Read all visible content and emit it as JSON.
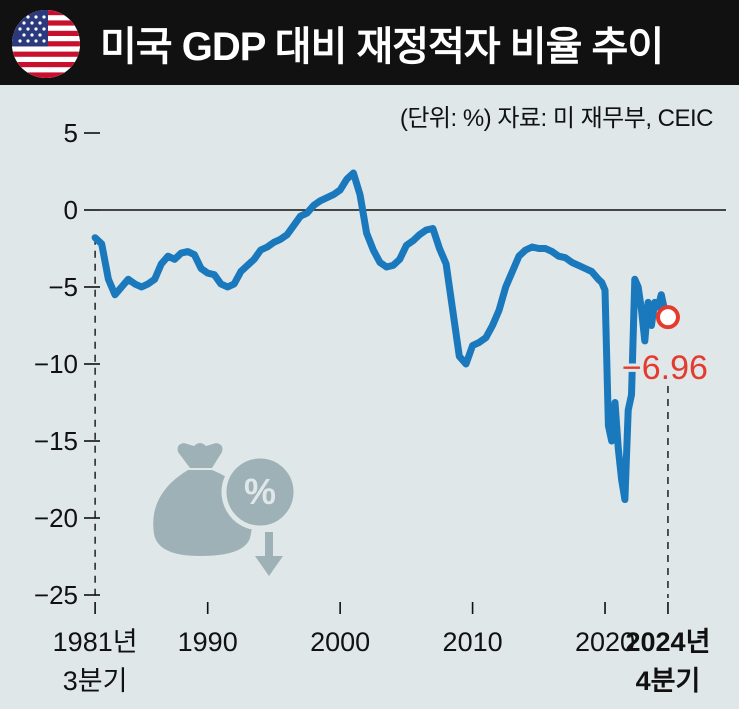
{
  "header": {
    "title": "미국 GDP 대비 재정적자 비율 추이",
    "flag_icon": "us-flag-icon"
  },
  "source_note": "(단위: %) 자료: 미 재무부, CEIC",
  "annotation": {
    "last_value_label": "−6.96"
  },
  "colors": {
    "line": "#1a78bd",
    "highlight": "#e53a2e",
    "background": "#dfe7e8",
    "header": "#111111",
    "icon": "#9eb1b6"
  },
  "chart_data": {
    "type": "line",
    "title": "미국 GDP 대비 재정적자 비율 추이",
    "unit": "%",
    "xlabel": "",
    "ylabel": "",
    "ylim": [
      -25,
      5
    ],
    "xlim": [
      1979,
      2028
    ],
    "yticks": [
      "5",
      "0",
      "−5",
      "−10",
      "−15",
      "−20",
      "−25"
    ],
    "xtick_labels": [
      {
        "x": 1981.5,
        "line1": "1981년",
        "line2": "3분기"
      },
      {
        "x": 1990,
        "line1": "1990",
        "line2": ""
      },
      {
        "x": 2000,
        "line1": "2000",
        "line2": ""
      },
      {
        "x": 2010,
        "line1": "2010",
        "line2": ""
      },
      {
        "x": 2020,
        "line1": "2020",
        "line2": ""
      },
      {
        "x": 2024.75,
        "line1": "2024년",
        "line2": "4분기"
      }
    ],
    "zero_line": true,
    "series": [
      {
        "x": [
          1981.5,
          1982.0,
          1982.5,
          1983.0,
          1983.5,
          1984.0,
          1984.5,
          1985.0,
          1985.5,
          1986.0,
          1986.5,
          1987.0,
          1987.5,
          1988.0,
          1988.5,
          1989.0,
          1989.5,
          1990.0,
          1990.5,
          1991.0,
          1991.5,
          1992.0,
          1992.5,
          1993.0,
          1993.5,
          1994.0,
          1994.5,
          1995.0,
          1995.5,
          1996.0,
          1996.5,
          1997.0,
          1997.5,
          1998.0,
          1998.5,
          1999.0,
          1999.5,
          2000.0,
          2000.5,
          2001.0,
          2001.5,
          2002.0,
          2002.5,
          2003.0,
          2003.5,
          2004.0,
          2004.5,
          2005.0,
          2005.5,
          2006.0,
          2006.5,
          2007.0,
          2007.5,
          2008.0,
          2008.5,
          2009.0,
          2009.5,
          2010.0,
          2010.5,
          2011.0,
          2011.5,
          2012.0,
          2012.5,
          2013.0,
          2013.5,
          2014.0,
          2014.5,
          2015.0,
          2015.5,
          2016.0,
          2016.5,
          2017.0,
          2017.5,
          2018.0,
          2018.5,
          2019.0,
          2019.5,
          2019.75,
          2020.0,
          2020.25,
          2020.5,
          2020.75,
          2021.0,
          2021.25,
          2021.5,
          2021.75,
          2022.0,
          2022.25,
          2022.5,
          2022.75,
          2023.0,
          2023.25,
          2023.5,
          2023.75,
          2024.0,
          2024.25,
          2024.5,
          2024.75
        ],
        "y": [
          -1.8,
          -2.2,
          -4.5,
          -5.5,
          -5.0,
          -4.5,
          -4.8,
          -5.0,
          -4.8,
          -4.5,
          -3.5,
          -3.0,
          -3.2,
          -2.8,
          -2.7,
          -2.9,
          -3.8,
          -4.1,
          -4.2,
          -4.8,
          -5.0,
          -4.8,
          -4.0,
          -3.6,
          -3.2,
          -2.6,
          -2.4,
          -2.1,
          -1.9,
          -1.6,
          -1.0,
          -0.4,
          -0.2,
          0.3,
          0.6,
          0.8,
          1.0,
          1.3,
          2.0,
          2.4,
          1.0,
          -1.5,
          -2.6,
          -3.4,
          -3.7,
          -3.6,
          -3.2,
          -2.3,
          -2.0,
          -1.6,
          -1.3,
          -1.2,
          -2.5,
          -3.5,
          -6.5,
          -9.5,
          -10.0,
          -8.8,
          -8.6,
          -8.3,
          -7.5,
          -6.5,
          -5.0,
          -4.0,
          -3.0,
          -2.6,
          -2.4,
          -2.5,
          -2.5,
          -2.7,
          -3.0,
          -3.1,
          -3.4,
          -3.6,
          -3.8,
          -4.0,
          -4.5,
          -4.7,
          -5.2,
          -14.0,
          -15.0,
          -12.5,
          -15.5,
          -17.5,
          -18.8,
          -13.0,
          -12.0,
          -4.5,
          -5.0,
          -6.5,
          -8.5,
          -6.0,
          -7.5,
          -6.0,
          -6.3,
          -5.5,
          -6.5,
          -6.96
        ]
      }
    ],
    "highlight_point": {
      "x": 2024.75,
      "y": -6.96
    }
  }
}
